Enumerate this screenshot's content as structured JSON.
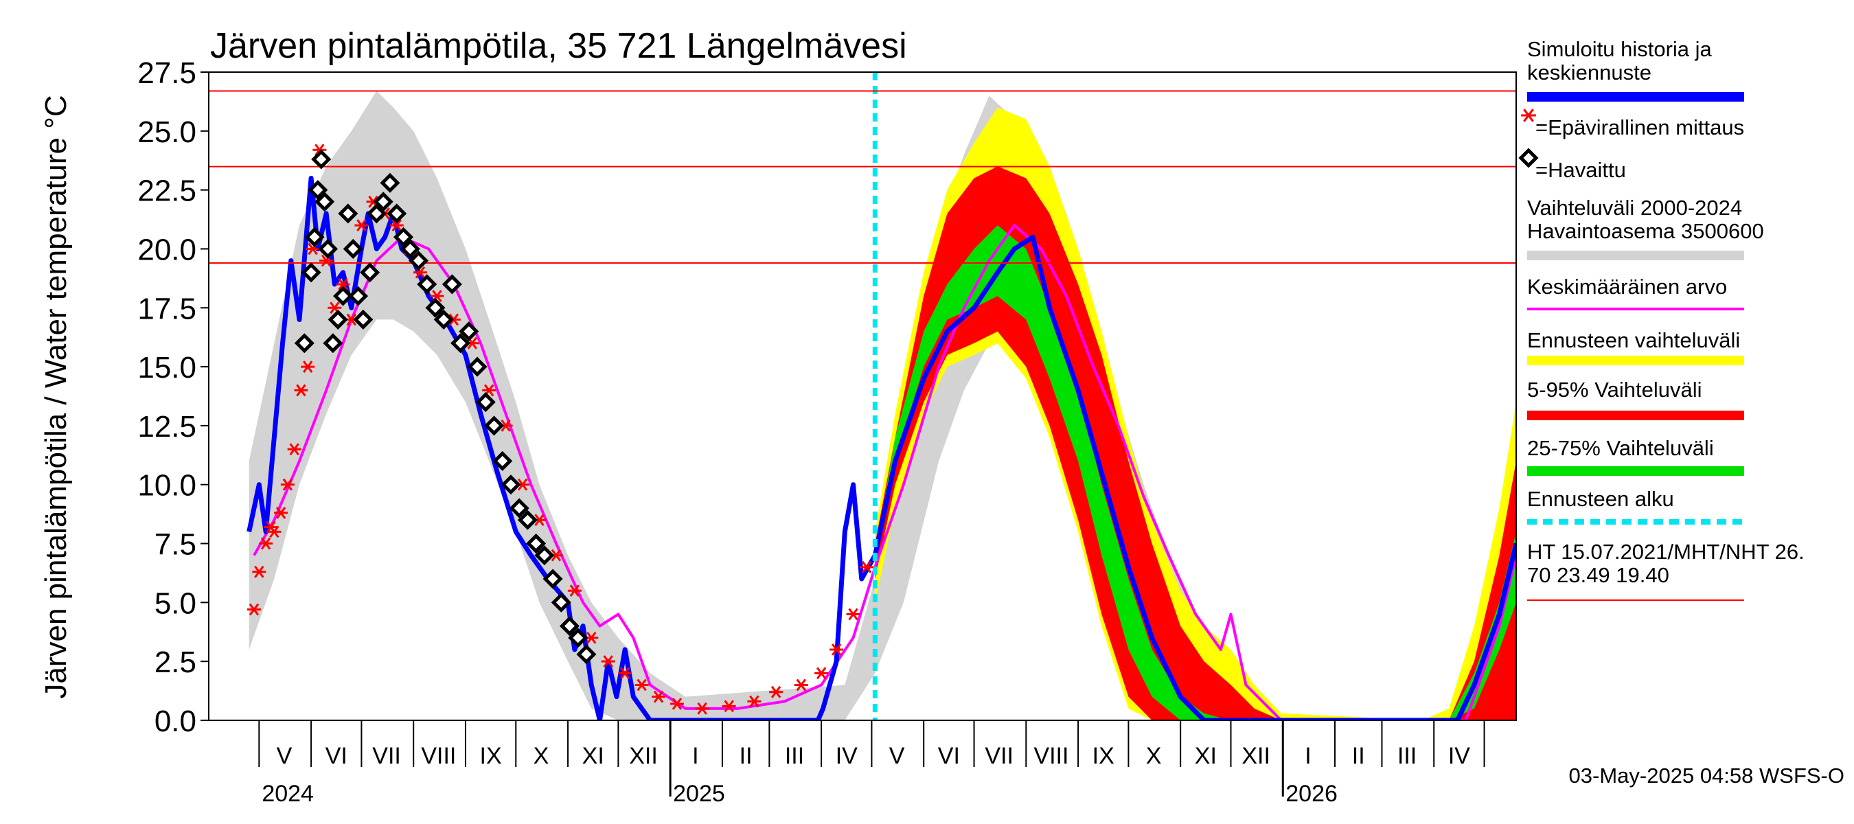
{
  "chart_data": {
    "type": "line",
    "title": "Järven pintalämpötila, 35 721 Längelmävesi",
    "ylabel": "Järven pintalämpötila / Water temperature °C",
    "xlabel": "",
    "ylim": [
      0,
      27.5
    ],
    "yticks": [
      "0.0",
      "2.5",
      "5.0",
      "7.5",
      "10.0",
      "12.5",
      "15.0",
      "17.5",
      "20.0",
      "22.5",
      "25.0",
      "27.5"
    ],
    "x_range": [
      "2024-04-01",
      "2026-05-20"
    ],
    "month_labels": [
      {
        "label": "V",
        "x": "2024-05-16"
      },
      {
        "label": "VI",
        "x": "2024-06-16"
      },
      {
        "label": "VII",
        "x": "2024-07-16"
      },
      {
        "label": "VIII",
        "x": "2024-08-16"
      },
      {
        "label": "IX",
        "x": "2024-09-16"
      },
      {
        "label": "X",
        "x": "2024-10-16"
      },
      {
        "label": "XI",
        "x": "2024-11-16"
      },
      {
        "label": "XII",
        "x": "2024-12-16"
      },
      {
        "label": "I",
        "x": "2025-01-16"
      },
      {
        "label": "II",
        "x": "2025-02-15"
      },
      {
        "label": "III",
        "x": "2025-03-16"
      },
      {
        "label": "IV",
        "x": "2025-04-16"
      },
      {
        "label": "V",
        "x": "2025-05-16"
      },
      {
        "label": "VI",
        "x": "2025-06-16"
      },
      {
        "label": "VII",
        "x": "2025-07-16"
      },
      {
        "label": "VIII",
        "x": "2025-08-16"
      },
      {
        "label": "IX",
        "x": "2025-09-16"
      },
      {
        "label": "X",
        "x": "2025-10-16"
      },
      {
        "label": "XI",
        "x": "2025-11-16"
      },
      {
        "label": "XII",
        "x": "2025-12-16"
      },
      {
        "label": "I",
        "x": "2026-01-16"
      },
      {
        "label": "II",
        "x": "2026-02-15"
      },
      {
        "label": "III",
        "x": "2026-03-16"
      },
      {
        "label": "IV",
        "x": "2026-04-16"
      }
    ],
    "year_labels": [
      {
        "label": "2024",
        "x": "2024-05-01"
      },
      {
        "label": "2025",
        "x": "2025-01-01"
      },
      {
        "label": "2026",
        "x": "2026-01-01"
      }
    ],
    "reference_lines": [
      26.7,
      23.49,
      19.4
    ],
    "forecast_start": "2025-05-03",
    "series": [
      {
        "name": "Vaihteluväli 2000-2024 Havaintoasema 3500600",
        "kind": "band",
        "color": "#d3d3d3",
        "x": [
          "2024-04-25",
          "2024-05-10",
          "2024-05-25",
          "2024-06-10",
          "2024-06-25",
          "2024-07-10",
          "2024-07-20",
          "2024-08-01",
          "2024-08-15",
          "2024-09-01",
          "2024-09-15",
          "2024-10-01",
          "2024-10-15",
          "2024-11-01",
          "2024-11-15",
          "2024-12-01",
          "2024-12-20",
          "2025-01-10",
          "2025-04-15",
          "2025-05-03",
          "2025-05-20",
          "2025-06-10",
          "2025-06-25",
          "2025-07-10",
          "2025-07-25",
          "2025-08-10",
          "2025-08-25",
          "2025-09-10",
          "2025-09-25",
          "2025-10-10",
          "2025-10-25",
          "2025-11-10",
          "2025-11-25",
          "2025-12-10",
          "2025-12-25",
          "2026-01-10"
        ],
        "low": [
          3.0,
          6.0,
          10.0,
          13.0,
          15.5,
          17.0,
          17.0,
          16.5,
          15.5,
          13.5,
          11.0,
          8.0,
          5.0,
          2.5,
          0.5,
          0,
          0,
          0,
          0,
          2.0,
          5.0,
          11.0,
          14.0,
          16.0,
          16.5,
          15.5,
          13.5,
          10.5,
          7.5,
          4.5,
          2.0,
          0.3,
          0,
          0,
          0,
          0
        ],
        "high": [
          11.0,
          16.0,
          21.0,
          23.5,
          25.0,
          26.7,
          26.0,
          25.0,
          23.0,
          20.0,
          17.0,
          13.5,
          10.0,
          7.0,
          5.0,
          3.5,
          2.0,
          1.0,
          1.5,
          6.0,
          12.0,
          21.0,
          24.0,
          26.5,
          25.5,
          24.0,
          21.5,
          17.5,
          13.5,
          10.0,
          7.0,
          4.5,
          2.5,
          1.0,
          0.5,
          0
        ]
      },
      {
        "name": "Ennusteen vaihteluväli",
        "kind": "band",
        "color": "#ffff00",
        "x": [
          "2025-05-03",
          "2025-05-15",
          "2025-06-01",
          "2025-06-15",
          "2025-07-01",
          "2025-07-15",
          "2025-08-01",
          "2025-08-15",
          "2025-09-01",
          "2025-09-15",
          "2025-10-01",
          "2025-10-15",
          "2025-11-01",
          "2025-11-15",
          "2025-12-01",
          "2025-12-15",
          "2025-12-31",
          "2026-03-25",
          "2026-04-10",
          "2026-04-25",
          "2026-05-10",
          "2026-05-20"
        ],
        "low": [
          5.0,
          9.0,
          13.0,
          15.0,
          15.5,
          16.0,
          14.5,
          12.0,
          8.0,
          4.0,
          0.5,
          0,
          0,
          0,
          0,
          0,
          0,
          0,
          0,
          0,
          0,
          0
        ],
        "high": [
          8.0,
          13.0,
          19.0,
          22.5,
          24.5,
          26.0,
          25.5,
          23.5,
          20.0,
          16.5,
          12.0,
          8.5,
          5.5,
          4.0,
          3.0,
          1.5,
          0.3,
          0,
          0.5,
          4.0,
          9.0,
          13.5
        ]
      },
      {
        "name": "5-95% Vaihteluväli",
        "kind": "band",
        "color": "#ff0000",
        "x": [
          "2025-05-03",
          "2025-05-15",
          "2025-06-01",
          "2025-06-15",
          "2025-07-01",
          "2025-07-15",
          "2025-08-01",
          "2025-08-15",
          "2025-09-01",
          "2025-09-15",
          "2025-10-01",
          "2025-10-15",
          "2025-11-01",
          "2025-11-15",
          "2025-12-01",
          "2025-12-15",
          "2025-12-31",
          "2026-03-25",
          "2026-04-10",
          "2026-04-25",
          "2026-05-10",
          "2026-05-20"
        ],
        "low": [
          6.0,
          10.0,
          13.5,
          15.5,
          16.0,
          16.5,
          15.0,
          12.5,
          8.5,
          4.5,
          1.0,
          0,
          0,
          0,
          0,
          0,
          0,
          0,
          0,
          0,
          0,
          0
        ],
        "high": [
          7.5,
          12.0,
          18.0,
          21.5,
          23.0,
          23.5,
          23.0,
          21.5,
          18.5,
          15.5,
          11.0,
          7.5,
          4.0,
          2.5,
          1.5,
          0.5,
          0,
          0,
          0,
          2.5,
          7.0,
          11.0
        ]
      },
      {
        "name": "25-75% Vaihteluväli",
        "kind": "band",
        "color": "#00e000",
        "x": [
          "2025-05-03",
          "2025-05-15",
          "2025-06-01",
          "2025-06-15",
          "2025-07-01",
          "2025-07-15",
          "2025-08-01",
          "2025-08-15",
          "2025-09-01",
          "2025-09-15",
          "2025-10-01",
          "2025-10-15",
          "2025-11-01",
          "2025-11-15",
          "2025-11-30",
          "2026-04-10",
          "2026-04-25",
          "2026-05-10",
          "2026-05-20"
        ],
        "low": [
          6.5,
          11.0,
          15.0,
          17.0,
          17.5,
          18.0,
          17.0,
          14.5,
          11.0,
          7.0,
          3.0,
          1.0,
          0,
          0,
          0,
          0,
          0.5,
          3.0,
          5.0
        ],
        "high": [
          7.0,
          12.0,
          16.5,
          18.5,
          20.0,
          21.0,
          20.0,
          17.5,
          14.0,
          10.0,
          6.0,
          3.0,
          1.0,
          0.3,
          0,
          0,
          2.0,
          5.0,
          8.0
        ]
      },
      {
        "name": "Keskimääräinen arvo",
        "kind": "line",
        "color": "#ff00ff",
        "x": [
          "2024-04-28",
          "2024-05-10",
          "2024-05-25",
          "2024-06-10",
          "2024-06-25",
          "2024-07-10",
          "2024-07-25",
          "2024-08-10",
          "2024-08-25",
          "2024-09-10",
          "2024-09-25",
          "2024-10-10",
          "2024-10-25",
          "2024-11-10",
          "2024-11-20",
          "2024-12-01",
          "2024-12-10",
          "2024-12-20",
          "2025-01-10",
          "2025-02-10",
          "2025-03-10",
          "2025-04-01",
          "2025-04-20",
          "2025-05-03",
          "2025-05-20",
          "2025-06-10",
          "2025-06-25",
          "2025-07-10",
          "2025-07-25",
          "2025-08-10",
          "2025-08-25",
          "2025-09-10",
          "2025-09-25",
          "2025-10-10",
          "2025-10-25",
          "2025-11-10",
          "2025-11-25",
          "2025-12-01",
          "2025-12-10",
          "2025-12-31",
          "2026-04-20",
          "2026-05-10",
          "2026-05-20"
        ],
        "y": [
          7.0,
          8.5,
          11.0,
          14.0,
          17.0,
          19.5,
          20.5,
          20.0,
          18.5,
          16.0,
          13.0,
          10.0,
          7.5,
          5.0,
          4.0,
          4.5,
          3.5,
          1.5,
          0.5,
          0.5,
          0.8,
          1.5,
          3.5,
          6.5,
          10.0,
          15.0,
          17.5,
          19.5,
          21.0,
          20.0,
          18.0,
          15.0,
          12.5,
          9.5,
          7.0,
          4.5,
          3.0,
          4.5,
          1.5,
          0,
          0,
          4.0,
          7.0
        ]
      },
      {
        "name": "Simuloitu historia ja keskiennuste",
        "kind": "line",
        "color": "#0000ff",
        "x": [
          "2024-04-25",
          "2024-05-01",
          "2024-05-05",
          "2024-05-10",
          "2024-05-15",
          "2024-05-20",
          "2024-05-25",
          "2024-06-01",
          "2024-06-05",
          "2024-06-10",
          "2024-06-15",
          "2024-06-20",
          "2024-06-25",
          "2024-07-01",
          "2024-07-05",
          "2024-07-10",
          "2024-07-15",
          "2024-07-20",
          "2024-07-25",
          "2024-08-01",
          "2024-08-10",
          "2024-08-20",
          "2024-09-01",
          "2024-09-10",
          "2024-09-20",
          "2024-10-01",
          "2024-10-10",
          "2024-10-20",
          "2024-11-01",
          "2024-11-05",
          "2024-11-10",
          "2024-11-15",
          "2024-11-20",
          "2024-11-25",
          "2024-11-30",
          "2024-12-05",
          "2024-12-10",
          "2024-12-20",
          "2025-01-10",
          "2025-02-10",
          "2025-03-10",
          "2025-03-30",
          "2025-04-02",
          "2025-04-10",
          "2025-04-15",
          "2025-04-20",
          "2025-04-25",
          "2025-05-03",
          "2025-05-15",
          "2025-06-01",
          "2025-06-15",
          "2025-07-01",
          "2025-07-15",
          "2025-07-25",
          "2025-08-05",
          "2025-08-15",
          "2025-09-01",
          "2025-09-15",
          "2025-10-01",
          "2025-10-15",
          "2025-11-01",
          "2025-11-15",
          "2025-11-20",
          "2026-04-05",
          "2026-04-15",
          "2026-04-25",
          "2026-05-10",
          "2026-05-20"
        ],
        "y": [
          8.0,
          10.0,
          8.0,
          12.0,
          16.0,
          19.5,
          17.0,
          23.0,
          20.0,
          21.5,
          18.5,
          19.0,
          17.5,
          20.0,
          21.5,
          20.0,
          20.5,
          21.5,
          20.0,
          19.5,
          18.0,
          17.0,
          15.5,
          13.0,
          10.5,
          8.0,
          7.0,
          6.0,
          5.0,
          3.0,
          4.0,
          1.5,
          0,
          2.5,
          1.0,
          3.0,
          1.0,
          0,
          0,
          0,
          0,
          0,
          0.5,
          2.5,
          8.0,
          10.0,
          6.0,
          7.0,
          11.0,
          14.5,
          16.5,
          17.5,
          19.0,
          20.0,
          20.5,
          17.5,
          14.0,
          10.5,
          6.5,
          3.5,
          1.0,
          0,
          0,
          0,
          0,
          1.5,
          4.5,
          7.5
        ]
      },
      {
        "name": "Epävirallinen mittaus",
        "kind": "markers",
        "marker": "asterisk",
        "color": "#ff0000",
        "x": [
          "2024-04-28",
          "2024-05-01",
          "2024-05-05",
          "2024-05-08",
          "2024-05-10",
          "2024-05-14",
          "2024-05-18",
          "2024-05-22",
          "2024-05-26",
          "2024-05-30",
          "2024-06-02",
          "2024-06-06",
          "2024-06-10",
          "2024-06-15",
          "2024-06-20",
          "2024-06-25",
          "2024-07-01",
          "2024-07-08",
          "2024-07-15",
          "2024-07-22",
          "2024-07-29",
          "2024-08-05",
          "2024-08-15",
          "2024-08-25",
          "2024-09-05",
          "2024-09-15",
          "2024-09-25",
          "2024-10-05",
          "2024-10-15",
          "2024-10-25",
          "2024-11-05",
          "2024-11-15",
          "2024-11-25",
          "2024-12-05",
          "2024-12-15",
          "2024-12-25",
          "2025-01-05",
          "2025-01-20",
          "2025-02-05",
          "2025-02-20",
          "2025-03-05",
          "2025-03-20",
          "2025-04-01",
          "2025-04-10",
          "2025-04-20",
          "2025-04-28"
        ],
        "y": [
          4.7,
          6.3,
          7.5,
          8.2,
          8.0,
          8.8,
          10.0,
          11.5,
          14.0,
          15.0,
          20.0,
          24.2,
          19.5,
          17.5,
          18.5,
          17.0,
          21.0,
          22.0,
          21.5,
          21.0,
          20.0,
          19.0,
          18.0,
          17.0,
          16.0,
          14.0,
          12.5,
          10.0,
          8.5,
          7.0,
          5.5,
          3.5,
          2.5,
          2.0,
          1.5,
          1.0,
          0.7,
          0.5,
          0.6,
          0.8,
          1.2,
          1.5,
          2.0,
          3.0,
          4.5,
          6.5
        ]
      },
      {
        "name": "Havaittu",
        "kind": "markers",
        "marker": "diamond",
        "color": "#000000",
        "x": [
          "2024-05-28",
          "2024-06-01",
          "2024-06-03",
          "2024-06-05",
          "2024-06-07",
          "2024-06-09",
          "2024-06-11",
          "2024-06-14",
          "2024-06-17",
          "2024-06-20",
          "2024-06-23",
          "2024-06-26",
          "2024-06-29",
          "2024-07-02",
          "2024-07-06",
          "2024-07-10",
          "2024-07-14",
          "2024-07-18",
          "2024-07-22",
          "2024-07-26",
          "2024-07-30",
          "2024-08-04",
          "2024-08-09",
          "2024-08-14",
          "2024-08-19",
          "2024-08-24",
          "2024-08-29",
          "2024-09-03",
          "2024-09-08",
          "2024-09-13",
          "2024-09-18",
          "2024-09-23",
          "2024-09-28",
          "2024-10-03",
          "2024-10-08",
          "2024-10-13",
          "2024-10-18",
          "2024-10-23",
          "2024-10-28",
          "2024-11-02",
          "2024-11-07",
          "2024-11-12"
        ],
        "y": [
          16.0,
          19.0,
          20.5,
          22.5,
          23.8,
          22.0,
          20.0,
          16.0,
          17.0,
          18.0,
          21.5,
          20.0,
          18.0,
          17.0,
          19.0,
          21.5,
          22.0,
          22.8,
          21.5,
          20.5,
          20.0,
          19.5,
          18.5,
          17.5,
          17.0,
          18.5,
          16.0,
          16.5,
          15.0,
          13.5,
          12.5,
          11.0,
          10.0,
          9.0,
          8.5,
          7.5,
          7.0,
          6.0,
          5.0,
          4.0,
          3.5,
          2.8
        ]
      }
    ]
  },
  "legend": {
    "items": [
      {
        "label": "Simuloitu historia ja\nkeskiennuste",
        "swatch": "line",
        "color": "#0000ff"
      },
      {
        "label": "=Epävirallinen mittaus",
        "swatch": "asterisk",
        "color": "#ff0000"
      },
      {
        "label": "=Havaittu",
        "swatch": "diamond",
        "color": "#000000"
      },
      {
        "label": "Vaihteluväli 2000-2024\n Havaintoasema 3500600",
        "swatch": "line",
        "color": "#d3d3d3"
      },
      {
        "label": "Keskimääräinen arvo",
        "swatch": "thin",
        "color": "#ff00ff"
      },
      {
        "label": "Ennusteen vaihteluväli",
        "swatch": "line",
        "color": "#ffff00"
      },
      {
        "label": "5-95% Vaihteluväli",
        "swatch": "line",
        "color": "#ff0000"
      },
      {
        "label": "25-75% Vaihteluväli",
        "swatch": "line",
        "color": "#00e000"
      },
      {
        "label": "Ennusteen alku",
        "swatch": "dashed",
        "color": "#00e5ee"
      },
      {
        "label": "HT 15.07.2021/MHT/NHT 26.\n70 23.49 19.40",
        "swatch": "redthin",
        "color": "#ff0000"
      }
    ]
  },
  "footer": {
    "timestamp": "03-May-2025 04:58 WSFS-O"
  }
}
